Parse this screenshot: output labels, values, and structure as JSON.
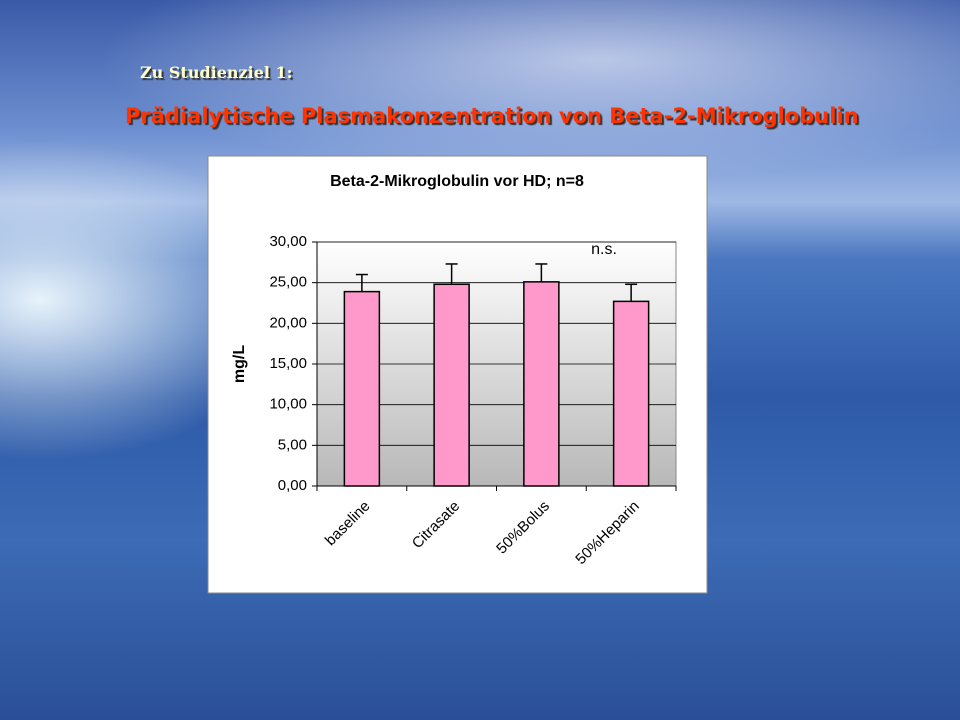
{
  "slide": {
    "heading": "Zu Studienziel 1:",
    "title": "Prädialytische Plasmakonzentration von Beta-2-Mikroglobulin"
  },
  "chart_data": {
    "type": "bar",
    "title": "Beta-2-Mikroglobulin  vor HD; n=8",
    "y_label": "mg/L",
    "annotation": "n.s.",
    "categories": [
      "baseline",
      "Citrasate",
      "50%Bolus",
      "50%Heparin"
    ],
    "values": [
      23.9,
      24.8,
      25.1,
      22.7
    ],
    "errors": [
      2.1,
      2.5,
      2.2,
      2.1
    ],
    "color": "#ff99cc",
    "ylim": [
      0,
      30
    ],
    "yticks": [
      {
        "value": 0,
        "label": "0,00"
      },
      {
        "value": 5,
        "label": "5,00"
      },
      {
        "value": 10,
        "label": "10,00"
      },
      {
        "value": 15,
        "label": "15,00"
      },
      {
        "value": 20,
        "label": "20,00"
      },
      {
        "value": 25,
        "label": "25,00"
      },
      {
        "value": 30,
        "label": "30,00"
      }
    ],
    "grid": true
  }
}
